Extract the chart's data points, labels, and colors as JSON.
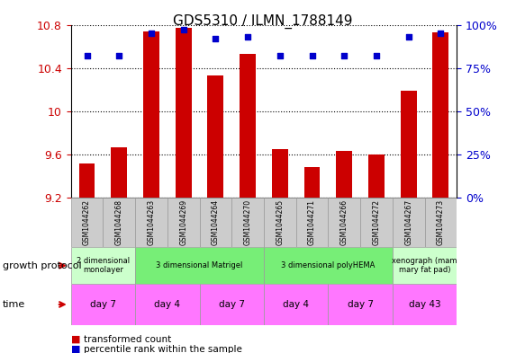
{
  "title": "GDS5310 / ILMN_1788149",
  "samples": [
    "GSM1044262",
    "GSM1044268",
    "GSM1044263",
    "GSM1044269",
    "GSM1044264",
    "GSM1044270",
    "GSM1044265",
    "GSM1044271",
    "GSM1044266",
    "GSM1044272",
    "GSM1044267",
    "GSM1044273"
  ],
  "bar_values": [
    9.52,
    9.67,
    10.74,
    10.77,
    10.33,
    10.53,
    9.65,
    9.48,
    9.63,
    9.6,
    10.19,
    10.73
  ],
  "dot_values": [
    82,
    82,
    95,
    97,
    92,
    93,
    82,
    82,
    82,
    82,
    93,
    95
  ],
  "ylim": [
    9.2,
    10.8
  ],
  "yticks": [
    9.2,
    9.6,
    10.0,
    10.4,
    10.8
  ],
  "ytick_labels": [
    "9.2",
    "9.6",
    "10",
    "10.4",
    "10.8"
  ],
  "y2ticks": [
    0,
    25,
    50,
    75,
    100
  ],
  "y2lim": [
    0,
    100
  ],
  "bar_color": "#CC0000",
  "dot_color": "#0000CC",
  "background_color": "#FFFFFF",
  "growth_protocol_groups": [
    {
      "label": "2 dimensional\nmonolayer",
      "start": 0,
      "end": 2,
      "color": "#CCFFCC"
    },
    {
      "label": "3 dimensional Matrigel",
      "start": 2,
      "end": 6,
      "color": "#77EE77"
    },
    {
      "label": "3 dimensional polyHEMA",
      "start": 6,
      "end": 10,
      "color": "#77EE77"
    },
    {
      "label": "xenograph (mam\nmary fat pad)",
      "start": 10,
      "end": 12,
      "color": "#CCFFCC"
    }
  ],
  "time_groups": [
    {
      "label": "day 7",
      "start": 0,
      "end": 2
    },
    {
      "label": "day 4",
      "start": 2,
      "end": 4
    },
    {
      "label": "day 7",
      "start": 4,
      "end": 6
    },
    {
      "label": "day 4",
      "start": 6,
      "end": 8
    },
    {
      "label": "day 7",
      "start": 8,
      "end": 10
    },
    {
      "label": "day 43",
      "start": 10,
      "end": 12
    }
  ],
  "time_color": "#FF77FF",
  "legend_items": [
    {
      "label": "transformed count",
      "color": "#CC0000"
    },
    {
      "label": "percentile rank within the sample",
      "color": "#0000CC"
    }
  ],
  "growth_protocol_label": "growth protocol",
  "time_label": "time",
  "title_fontsize": 11,
  "ytick_color_left": "#CC0000",
  "ytick_color_right": "#0000CC",
  "sample_box_color": "#CCCCCC",
  "arrow_color": "#CC0000"
}
